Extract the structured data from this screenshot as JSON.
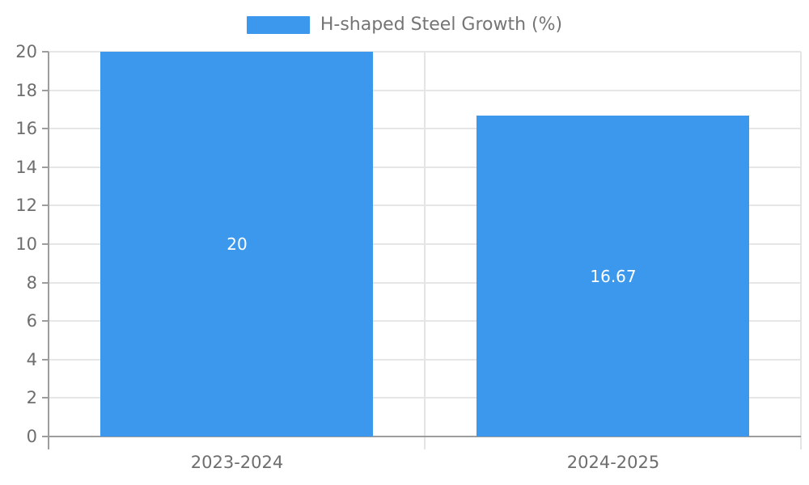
{
  "chart_data": {
    "type": "bar",
    "title": "",
    "categories": [
      "2023-2024",
      "2024-2025"
    ],
    "series": [
      {
        "name": "H-shaped Steel Growth (%)",
        "values": [
          20,
          16.67
        ],
        "labels": [
          "20",
          "16.67"
        ],
        "color": "#3B98EC"
      }
    ],
    "xlabel": "",
    "ylabel": "",
    "ylim": [
      0,
      20
    ],
    "ytick_interval": 2,
    "ytick_labels": [
      "0",
      "2",
      "4",
      "6",
      "8",
      "10",
      "12",
      "14",
      "16",
      "18",
      "20"
    ],
    "grid": true,
    "legend_position": "top-center",
    "colors": {
      "bar": "#3B98EC",
      "data_label_text": "#FFFFFF",
      "axis_text": "#6E6E6E",
      "legend_text": "#757575",
      "axis_line": "#9D9D9D",
      "grid_line": "#E6E6E6",
      "split_line_vertical": "#E4E4E4"
    }
  }
}
